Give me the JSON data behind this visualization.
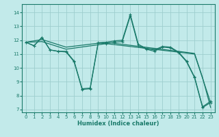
{
  "bg_color": "#c2eaea",
  "grid_color": "#9ecece",
  "line_color": "#1a7a6a",
  "xlabel": "Humidex (Indice chaleur)",
  "xlim": [
    -0.5,
    23.5
  ],
  "ylim": [
    6.8,
    14.6
  ],
  "xticks": [
    0,
    1,
    2,
    3,
    4,
    5,
    6,
    7,
    8,
    9,
    10,
    11,
    12,
    13,
    14,
    15,
    16,
    17,
    18,
    19,
    20,
    21,
    22,
    23
  ],
  "yticks": [
    7,
    8,
    9,
    10,
    11,
    12,
    13,
    14
  ],
  "line1_x": [
    0,
    1,
    2,
    3,
    4,
    5,
    6,
    7,
    8,
    9,
    10,
    11,
    12,
    13,
    14,
    15,
    16,
    17,
    18,
    19,
    20,
    21,
    22,
    23
  ],
  "line1_y": [
    11.85,
    11.6,
    12.2,
    11.3,
    11.2,
    11.15,
    10.45,
    8.45,
    8.5,
    11.8,
    11.75,
    11.85,
    11.9,
    13.75,
    11.6,
    11.35,
    11.2,
    11.5,
    11.45,
    11.1,
    10.45,
    9.3,
    7.15,
    7.5
  ],
  "line2_x": [
    0,
    1,
    2,
    3,
    4,
    5,
    6,
    7,
    8,
    9,
    10,
    11,
    12,
    13,
    14,
    15,
    16,
    17,
    18,
    19,
    20,
    21,
    22,
    23
  ],
  "line2_y": [
    11.85,
    11.6,
    12.2,
    11.3,
    11.2,
    11.2,
    10.5,
    8.5,
    8.55,
    11.82,
    11.85,
    11.95,
    12.0,
    13.85,
    11.7,
    11.4,
    11.3,
    11.55,
    11.5,
    11.15,
    10.5,
    9.35,
    7.2,
    7.6
  ],
  "line3_x": [
    0,
    2,
    5,
    10,
    21,
    22,
    23
  ],
  "line3_y": [
    11.85,
    12.05,
    11.5,
    11.85,
    11.05,
    9.3,
    7.15
  ],
  "line4_x": [
    0,
    2,
    5,
    10,
    21,
    22,
    23
  ],
  "line4_y": [
    11.85,
    11.9,
    11.35,
    11.75,
    11.0,
    9.25,
    7.5
  ]
}
